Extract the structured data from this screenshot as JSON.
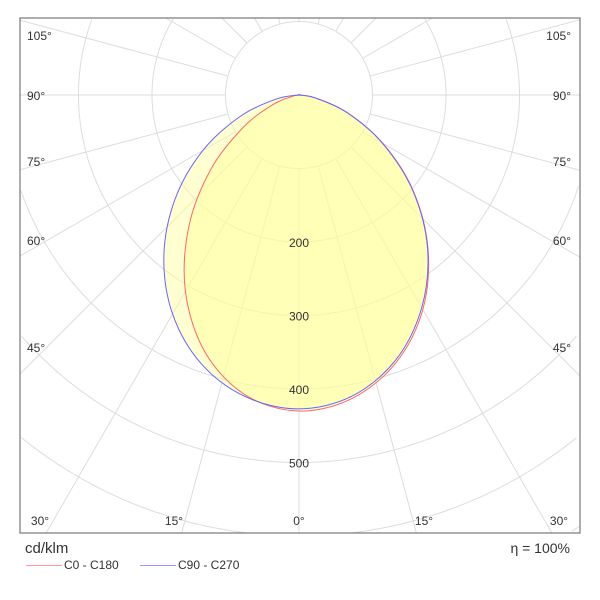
{
  "chart_data": {
    "type": "polar",
    "unit_label": "cd/klm",
    "efficiency_label": "η = 100%",
    "radial_ticks": [
      200,
      300,
      400,
      500
    ],
    "radial_grid": [
      100,
      200,
      300,
      400,
      500,
      600,
      700
    ],
    "angle_labels_left": [
      "105°",
      "90°",
      "75°",
      "60°",
      "45°"
    ],
    "angle_labels_right": [
      "105°",
      "90°",
      "75°",
      "60°",
      "45°"
    ],
    "angle_labels_bottom": [
      "30°",
      "15°",
      "0°",
      "15°",
      "30°"
    ],
    "gamma": [
      0,
      10,
      20,
      30,
      40,
      50,
      60,
      70,
      80,
      90
    ],
    "series": [
      {
        "name": "C0 - C180",
        "color": "#ff6666",
        "right_values": [
          430,
          419,
          387,
          337,
          273,
          203,
          132,
          69,
          22,
          0
        ],
        "left_values": [
          430,
          415,
          373,
          309,
          233,
          156,
          87,
          37,
          8,
          0
        ]
      },
      {
        "name": "C90 - C270",
        "color": "#6666ff",
        "right_values": [
          427,
          416,
          384,
          334,
          272,
          202,
          131,
          69,
          22,
          0
        ],
        "left_values": [
          427,
          417,
          389,
          344,
          286,
          220,
          151,
          85,
          31,
          0
        ]
      }
    ],
    "fill_color": "#ffff99",
    "grid": true
  }
}
